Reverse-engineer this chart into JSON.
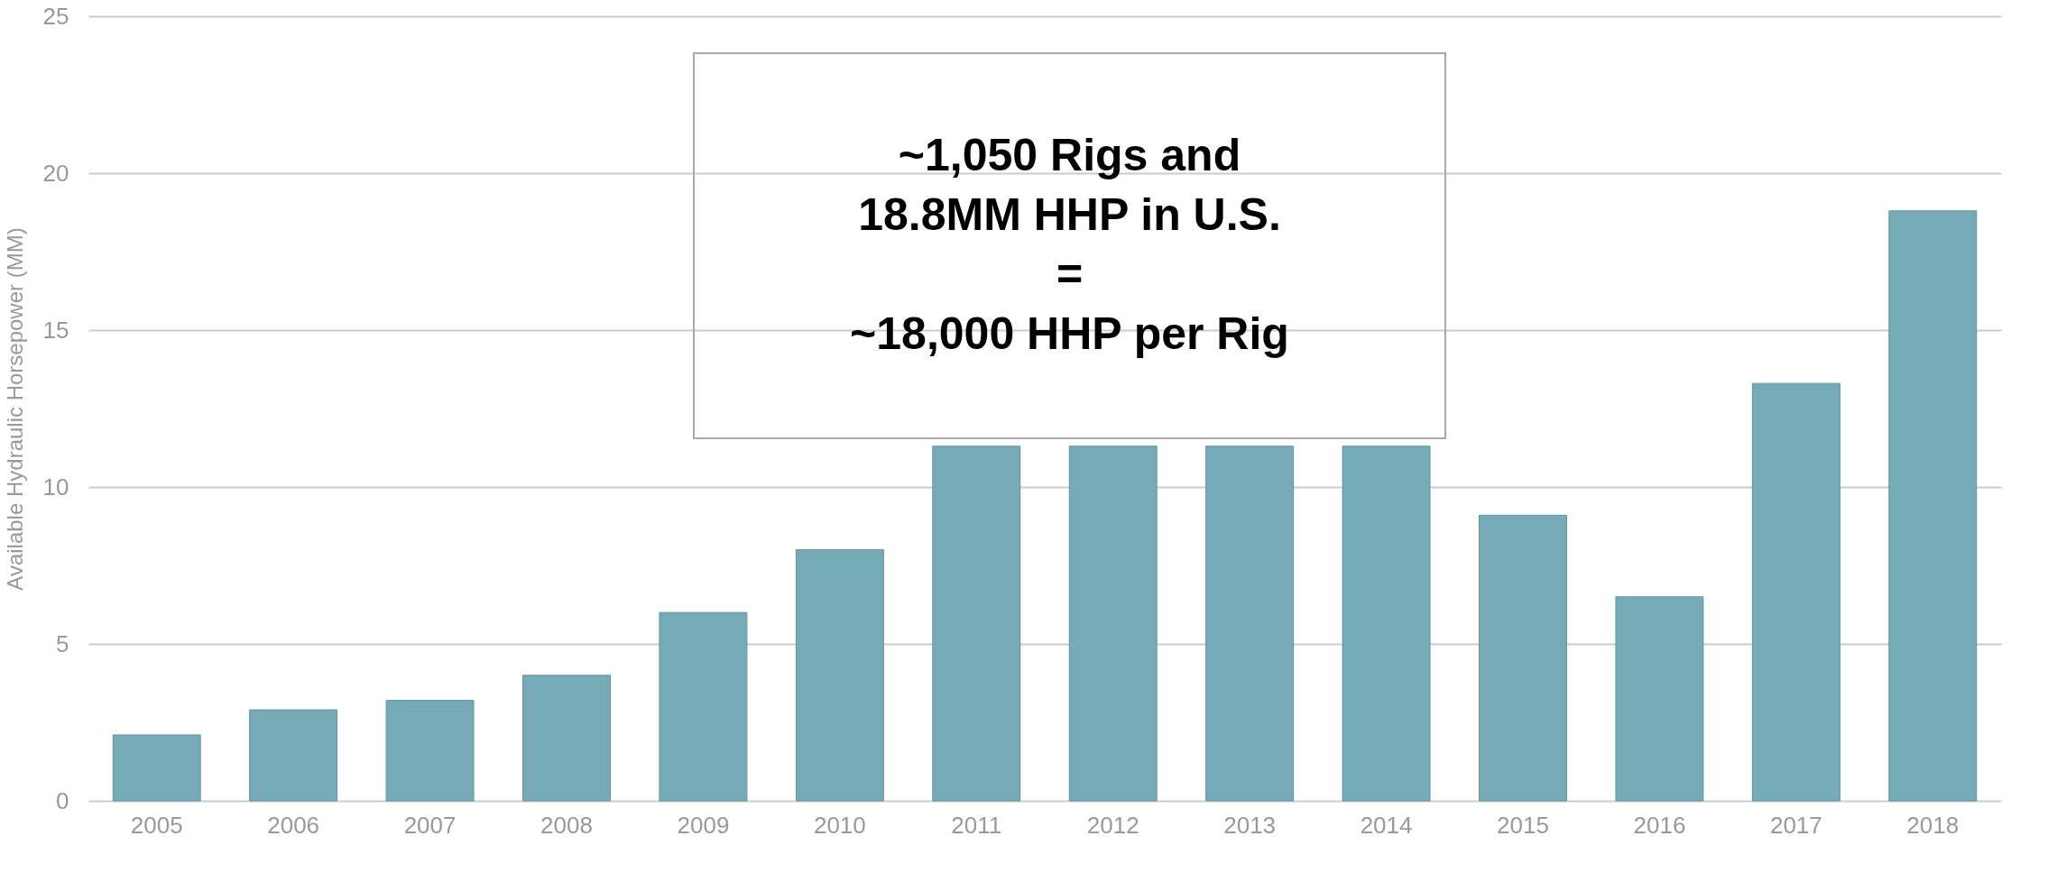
{
  "chart_data": {
    "type": "bar",
    "ylabel": "Available Hydraulic Horsepower (MM)",
    "categories": [
      "2005",
      "2006",
      "2007",
      "2008",
      "2009",
      "2010",
      "2011",
      "2012",
      "2013",
      "2014",
      "2015",
      "2016",
      "2017",
      "2018"
    ],
    "values": [
      2.1,
      2.9,
      3.2,
      4.0,
      6.0,
      8.0,
      11.3,
      11.3,
      11.3,
      11.3,
      9.1,
      6.5,
      13.3,
      18.8
    ],
    "color": "#77aab7",
    "ylim": [
      0,
      25
    ],
    "yticks": [
      0,
      5,
      10,
      15,
      20,
      25
    ],
    "grid": "y",
    "annotations": [
      "~1,050 Rigs and\n18.8MM HHP in U.S.\n=\n~18,000 HHP per Rig"
    ]
  }
}
